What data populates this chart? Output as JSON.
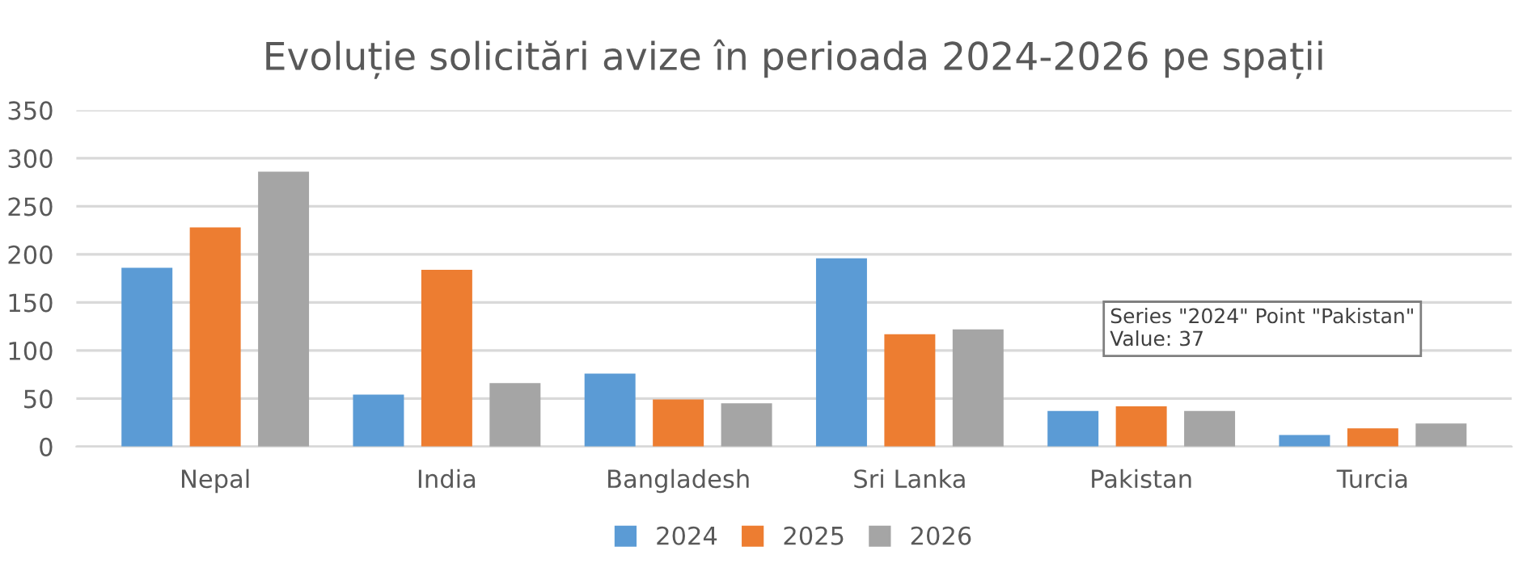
{
  "chart_data": {
    "type": "bar",
    "title": "Evoluție solicitări avize în perioada 2024-2026 pe spații",
    "categories": [
      "Nepal",
      "India",
      "Bangladesh",
      "Sri Lanka",
      "Pakistan",
      "Turcia"
    ],
    "series": [
      {
        "name": "2024",
        "color": "#5b9bd5",
        "values": [
          186,
          54,
          76,
          196,
          37,
          12
        ]
      },
      {
        "name": "2025",
        "color": "#ed7d31",
        "values": [
          228,
          184,
          49,
          117,
          42,
          19
        ]
      },
      {
        "name": "2026",
        "color": "#a5a5a5",
        "values": [
          286,
          66,
          45,
          122,
          37,
          24
        ]
      }
    ],
    "ylim": [
      0,
      350
    ],
    "yticks": [
      0,
      50,
      100,
      150,
      200,
      250,
      300,
      350
    ],
    "grid": "y",
    "legend": "bottom",
    "annotations": [
      "Series \"2024\" Point \"Pakistan\"\nValue: 37"
    ]
  }
}
